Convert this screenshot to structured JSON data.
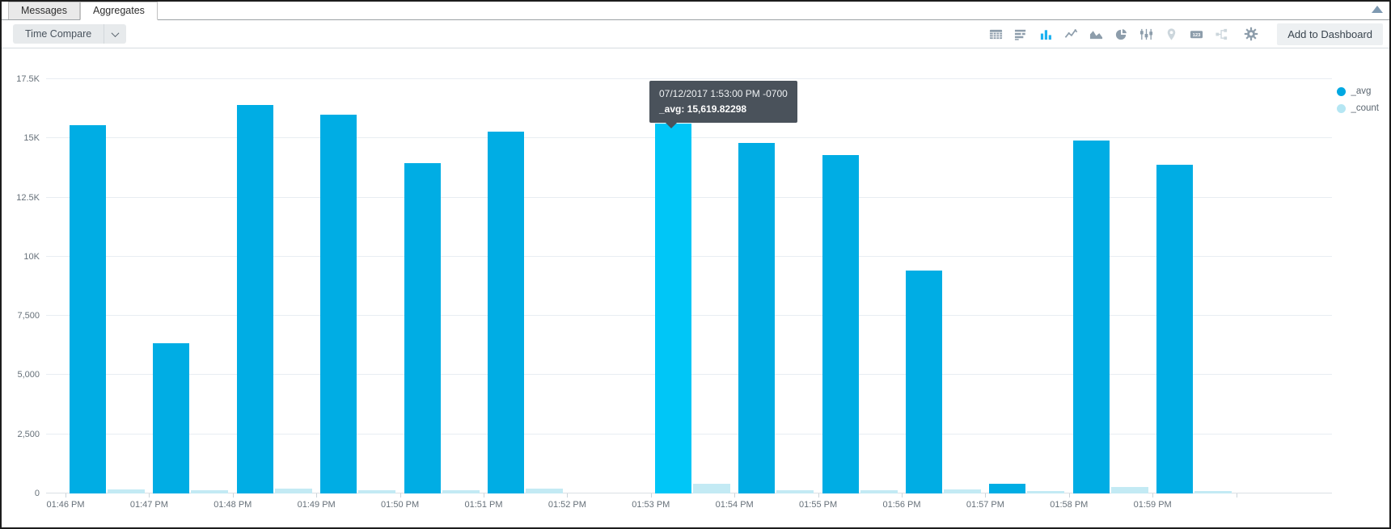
{
  "tabs": [
    {
      "label": "Messages",
      "active": false
    },
    {
      "label": "Aggregates",
      "active": true
    }
  ],
  "toolbar": {
    "time_compare_label": "Time Compare",
    "add_to_dashboard_label": "Add to Dashboard",
    "chart_type_icons": [
      {
        "name": "table-icon",
        "active": false,
        "faded": false
      },
      {
        "name": "bar-horizontal-icon",
        "active": false,
        "faded": false
      },
      {
        "name": "bar-chart-icon",
        "active": true,
        "faded": false
      },
      {
        "name": "line-chart-icon",
        "active": false,
        "faded": false
      },
      {
        "name": "area-chart-icon",
        "active": false,
        "faded": false
      },
      {
        "name": "pie-chart-icon",
        "active": false,
        "faded": false
      },
      {
        "name": "box-plot-icon",
        "active": false,
        "faded": false
      },
      {
        "name": "map-pin-icon",
        "active": false,
        "faded": true
      },
      {
        "name": "single-value-icon",
        "active": false,
        "faded": false
      },
      {
        "name": "transaction-flow-icon",
        "active": false,
        "faded": true
      },
      {
        "name": "gear-icon",
        "active": false,
        "faded": false
      }
    ]
  },
  "legend": [
    {
      "label": "_avg",
      "color": "#00a8e2"
    },
    {
      "label": "_count",
      "color": "#b5e6f3"
    }
  ],
  "tooltip": {
    "line1": "07/12/2017 1:53:00 PM -0700",
    "line2": "_avg: 15,619.82298"
  },
  "colors": {
    "avg_bar": "#00ade4",
    "avg_bar_highlight": "#00c6f7",
    "count_bar": "#c3eaf4",
    "gridline": "#e8edf2",
    "tooltip_bg": "#4a525b",
    "active_icon": "#1bb1f0"
  },
  "chart_data": {
    "type": "bar",
    "title": "",
    "xlabel": "",
    "ylabel": "",
    "ylim": [
      0,
      17500
    ],
    "grid": true,
    "legend_position": "top-right",
    "y_ticks": [
      {
        "value": 17500,
        "label": "17.5K"
      },
      {
        "value": 15000,
        "label": "15K"
      },
      {
        "value": 12500,
        "label": "12.5K"
      },
      {
        "value": 10000,
        "label": "10K"
      },
      {
        "value": 7500,
        "label": "7,500"
      },
      {
        "value": 5000,
        "label": "5,000"
      },
      {
        "value": 2500,
        "label": "2,500"
      },
      {
        "value": 0,
        "label": "0"
      }
    ],
    "categories": [
      "01:46 PM",
      "01:47 PM",
      "01:48 PM",
      "01:49 PM",
      "01:50 PM",
      "01:51 PM",
      "01:52 PM",
      "01:53 PM",
      "01:54 PM",
      "01:55 PM",
      "01:56 PM",
      "01:57 PM",
      "01:58 PM",
      "01:59 PM"
    ],
    "series": [
      {
        "name": "_avg",
        "color": "#00ade4",
        "values": [
          15550,
          6350,
          16400,
          16000,
          13950,
          15300,
          null,
          15619.82298,
          14800,
          14300,
          9400,
          420,
          14900,
          13900
        ]
      },
      {
        "name": "_count",
        "color": "#c3eaf4",
        "values": [
          160,
          130,
          210,
          150,
          130,
          195,
          null,
          400,
          130,
          145,
          160,
          110,
          270,
          100
        ]
      }
    ],
    "highlighted_index": 7,
    "highlighted_series": "_avg",
    "highlight_color": "#00c6f7"
  }
}
